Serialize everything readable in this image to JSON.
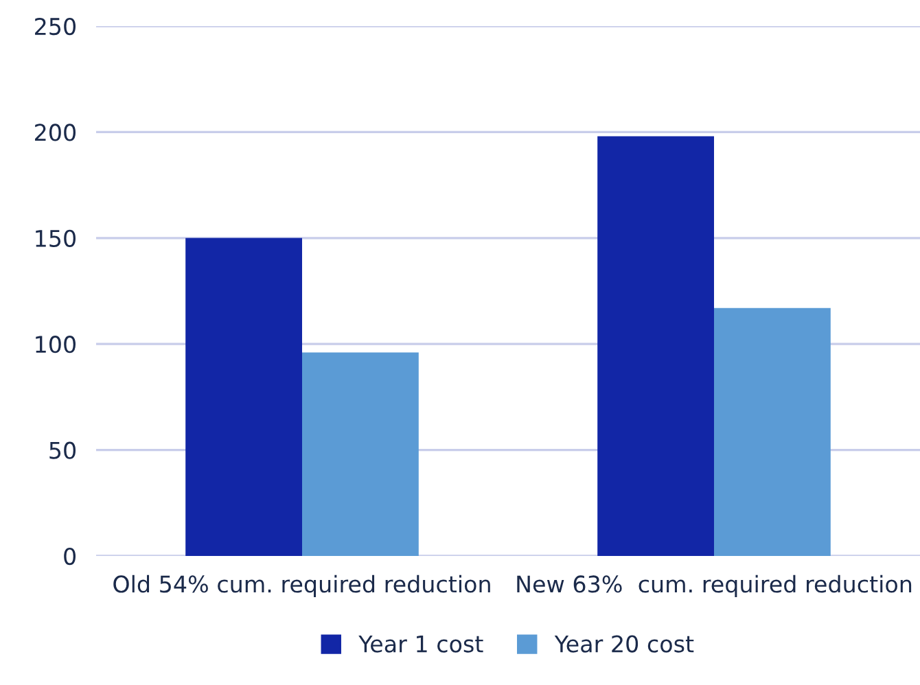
{
  "chart_data": {
    "type": "bar",
    "categories": [
      "Old 54% cum. required reduction",
      "New 63%  cum. required reduction"
    ],
    "series": [
      {
        "name": "Year 1 cost",
        "color": "#1226a6",
        "values": [
          150,
          198
        ]
      },
      {
        "name": "Year 20 cost",
        "color": "#5b9bd5",
        "values": [
          96,
          117
        ]
      }
    ],
    "ylim": [
      0,
      250
    ],
    "yticks": [
      0,
      50,
      100,
      150,
      200,
      250
    ],
    "grid": "y",
    "legend": "bottom"
  }
}
